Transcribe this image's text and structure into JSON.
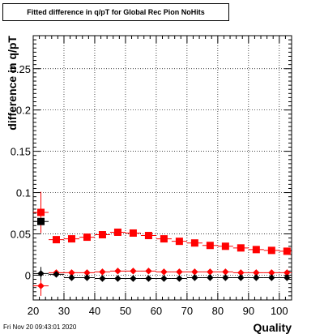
{
  "chart_data": {
    "type": "scatter",
    "title": "Fitted difference in q/pT for Global Rec Pion NoHits",
    "xlabel": "Quality",
    "ylabel": "difference in q/pT",
    "xlim": [
      20,
      104
    ],
    "ylim": [
      -0.03,
      0.29
    ],
    "x_ticks": [
      20,
      30,
      40,
      50,
      60,
      70,
      80,
      90,
      100
    ],
    "y_ticks": [
      0,
      0.05,
      0.1,
      0.15,
      0.2,
      0.25
    ],
    "y_tick_labels": [
      "0",
      "0.05",
      "0.1",
      "0.15",
      "0.2",
      "0.25"
    ],
    "grid": true,
    "series": [
      {
        "marker": "square",
        "color": "#ff0000",
        "points": [
          {
            "x": 22.5,
            "y": 0.076,
            "yerr": 0.025,
            "xerr": 2.5
          },
          {
            "x": 27.5,
            "y": 0.043,
            "yerr": 0.003,
            "xerr": 2.5
          },
          {
            "x": 32.5,
            "y": 0.044,
            "yerr": 0.003,
            "xerr": 2.5
          },
          {
            "x": 37.5,
            "y": 0.046,
            "yerr": 0.002,
            "xerr": 2.5
          },
          {
            "x": 42.5,
            "y": 0.049,
            "yerr": 0.002,
            "xerr": 2.5
          },
          {
            "x": 47.5,
            "y": 0.052,
            "yerr": 0.002,
            "xerr": 2.5
          },
          {
            "x": 52.5,
            "y": 0.051,
            "yerr": 0.002,
            "xerr": 2.5
          },
          {
            "x": 57.5,
            "y": 0.048,
            "yerr": 0.002,
            "xerr": 2.5
          },
          {
            "x": 62.5,
            "y": 0.044,
            "yerr": 0.002,
            "xerr": 2.5
          },
          {
            "x": 67.5,
            "y": 0.041,
            "yerr": 0.002,
            "xerr": 2.5
          },
          {
            "x": 72.5,
            "y": 0.039,
            "yerr": 0.002,
            "xerr": 2.5
          },
          {
            "x": 77.5,
            "y": 0.036,
            "yerr": 0.002,
            "xerr": 2.5
          },
          {
            "x": 82.5,
            "y": 0.035,
            "yerr": 0.002,
            "xerr": 2.5
          },
          {
            "x": 87.5,
            "y": 0.033,
            "yerr": 0.002,
            "xerr": 2.5
          },
          {
            "x": 92.5,
            "y": 0.031,
            "yerr": 0.002,
            "xerr": 2.5
          },
          {
            "x": 97.5,
            "y": 0.03,
            "yerr": 0.002,
            "xerr": 2.5
          },
          {
            "x": 102.5,
            "y": 0.029,
            "yerr": 0.002,
            "xerr": 2.5
          }
        ]
      },
      {
        "marker": "square",
        "color": "#000000",
        "points": [
          {
            "x": 22.5,
            "y": 0.065,
            "yerr": 0.0,
            "xerr": 2.5
          }
        ]
      },
      {
        "marker": "diamond",
        "color": "#ff0000",
        "points": [
          {
            "x": 22.5,
            "y": -0.013,
            "yerr": 0.012,
            "xerr": 2.5
          },
          {
            "x": 27.5,
            "y": 0.003,
            "yerr": 0.002,
            "xerr": 2.5
          },
          {
            "x": 32.5,
            "y": 0.003,
            "yerr": 0.001,
            "xerr": 2.5
          },
          {
            "x": 37.5,
            "y": 0.003,
            "yerr": 0.001,
            "xerr": 2.5
          },
          {
            "x": 42.5,
            "y": 0.004,
            "yerr": 0.001,
            "xerr": 2.5
          },
          {
            "x": 47.5,
            "y": 0.005,
            "yerr": 0.001,
            "xerr": 2.5
          },
          {
            "x": 52.5,
            "y": 0.005,
            "yerr": 0.001,
            "xerr": 2.5
          },
          {
            "x": 57.5,
            "y": 0.005,
            "yerr": 0.001,
            "xerr": 2.5
          },
          {
            "x": 62.5,
            "y": 0.004,
            "yerr": 0.001,
            "xerr": 2.5
          },
          {
            "x": 67.5,
            "y": 0.004,
            "yerr": 0.001,
            "xerr": 2.5
          },
          {
            "x": 72.5,
            "y": 0.004,
            "yerr": 0.001,
            "xerr": 2.5
          },
          {
            "x": 77.5,
            "y": 0.004,
            "yerr": 0.001,
            "xerr": 2.5
          },
          {
            "x": 82.5,
            "y": 0.004,
            "yerr": 0.001,
            "xerr": 2.5
          },
          {
            "x": 87.5,
            "y": 0.003,
            "yerr": 0.001,
            "xerr": 2.5
          },
          {
            "x": 92.5,
            "y": 0.003,
            "yerr": 0.001,
            "xerr": 2.5
          },
          {
            "x": 97.5,
            "y": 0.003,
            "yerr": 0.001,
            "xerr": 2.5
          },
          {
            "x": 102.5,
            "y": 0.003,
            "yerr": 0.001,
            "xerr": 2.5
          }
        ]
      },
      {
        "marker": "diamond",
        "color": "#000000",
        "points": [
          {
            "x": 22.5,
            "y": 0.002,
            "yerr": 0.008,
            "xerr": 2.5
          },
          {
            "x": 27.5,
            "y": 0.001,
            "yerr": 0.002,
            "xerr": 2.5
          },
          {
            "x": 32.5,
            "y": -0.003,
            "yerr": 0.001,
            "xerr": 2.5
          },
          {
            "x": 37.5,
            "y": -0.003,
            "yerr": 0.001,
            "xerr": 2.5
          },
          {
            "x": 42.5,
            "y": -0.004,
            "yerr": 0.001,
            "xerr": 2.5
          },
          {
            "x": 47.5,
            "y": -0.004,
            "yerr": 0.001,
            "xerr": 2.5
          },
          {
            "x": 52.5,
            "y": -0.004,
            "yerr": 0.001,
            "xerr": 2.5
          },
          {
            "x": 57.5,
            "y": -0.004,
            "yerr": 0.001,
            "xerr": 2.5
          },
          {
            "x": 62.5,
            "y": -0.004,
            "yerr": 0.001,
            "xerr": 2.5
          },
          {
            "x": 67.5,
            "y": -0.004,
            "yerr": 0.001,
            "xerr": 2.5
          },
          {
            "x": 72.5,
            "y": -0.003,
            "yerr": 0.001,
            "xerr": 2.5
          },
          {
            "x": 77.5,
            "y": -0.003,
            "yerr": 0.001,
            "xerr": 2.5
          },
          {
            "x": 82.5,
            "y": -0.003,
            "yerr": 0.001,
            "xerr": 2.5
          },
          {
            "x": 87.5,
            "y": -0.003,
            "yerr": 0.001,
            "xerr": 2.5
          },
          {
            "x": 92.5,
            "y": -0.003,
            "yerr": 0.001,
            "xerr": 2.5
          },
          {
            "x": 97.5,
            "y": -0.003,
            "yerr": 0.001,
            "xerr": 2.5
          },
          {
            "x": 102.5,
            "y": -0.003,
            "yerr": 0.001,
            "xerr": 2.5
          }
        ]
      }
    ]
  },
  "footer": {
    "timestamp": "Fri Nov 20 09:43:01 2020"
  }
}
